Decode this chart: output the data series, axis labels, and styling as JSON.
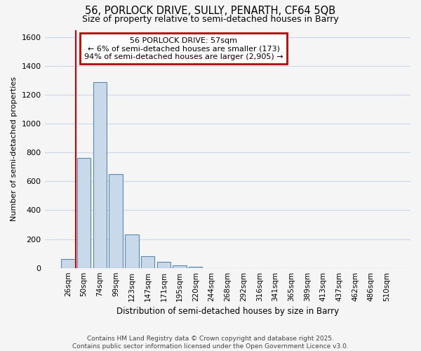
{
  "title_line1": "56, PORLOCK DRIVE, SULLY, PENARTH, CF64 5QB",
  "title_line2": "Size of property relative to semi-detached houses in Barry",
  "xlabel": "Distribution of semi-detached houses by size in Barry",
  "ylabel": "Number of semi-detached properties",
  "categories": [
    "26sqm",
    "50sqm",
    "74sqm",
    "99sqm",
    "123sqm",
    "147sqm",
    "171sqm",
    "195sqm",
    "220sqm",
    "244sqm",
    "268sqm",
    "292sqm",
    "316sqm",
    "341sqm",
    "365sqm",
    "389sqm",
    "413sqm",
    "437sqm",
    "462sqm",
    "486sqm",
    "510sqm"
  ],
  "values": [
    60,
    760,
    1290,
    650,
    230,
    80,
    40,
    20,
    10,
    0,
    0,
    0,
    0,
    0,
    0,
    0,
    0,
    0,
    0,
    0,
    0
  ],
  "bar_color": "#c8daea",
  "bar_edge_color": "#5588bb",
  "property_line_color": "#cc0000",
  "property_line_x": 0.5,
  "annotation_title": "56 PORLOCK DRIVE: 57sqm",
  "annotation_line1": "← 6% of semi-detached houses are smaller (173)",
  "annotation_line2": "94% of semi-detached houses are larger (2,905) →",
  "annotation_box_color": "#cc0000",
  "fig_background_color": "#f5f5f5",
  "plot_background_color": "#f5f5f5",
  "grid_color": "#c8d8e8",
  "ylim": [
    0,
    1650
  ],
  "yticks": [
    0,
    200,
    400,
    600,
    800,
    1000,
    1200,
    1400,
    1600
  ],
  "footer_line1": "Contains HM Land Registry data © Crown copyright and database right 2025.",
  "footer_line2": "Contains public sector information licensed under the Open Government Licence v3.0."
}
